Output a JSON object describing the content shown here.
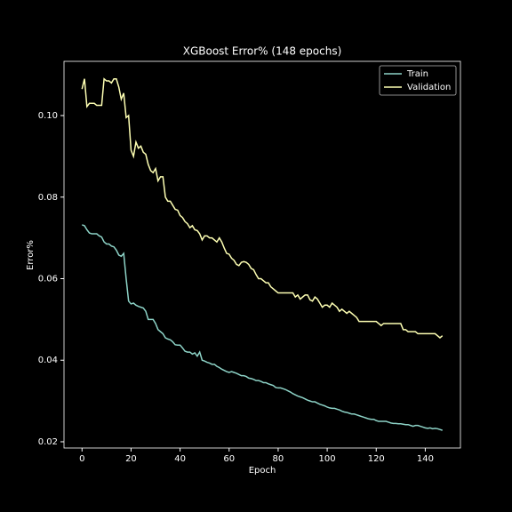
{
  "chart_data": {
    "type": "line",
    "title": "XGBoost Error% (148 epochs)",
    "xlabel": "Epoch",
    "ylabel": "Error%",
    "x": [
      0,
      1,
      2,
      3,
      4,
      5,
      6,
      7,
      8,
      9,
      10,
      11,
      12,
      13,
      14,
      15,
      16,
      17,
      18,
      19,
      20,
      21,
      22,
      23,
      24,
      25,
      26,
      27,
      28,
      29,
      30,
      31,
      32,
      33,
      34,
      35,
      36,
      37,
      38,
      39,
      40,
      41,
      42,
      43,
      44,
      45,
      46,
      47,
      48,
      49,
      50,
      51,
      52,
      53,
      54,
      55,
      56,
      57,
      58,
      59,
      60,
      61,
      62,
      63,
      64,
      65,
      66,
      67,
      68,
      69,
      70,
      71,
      72,
      73,
      74,
      75,
      76,
      77,
      78,
      79,
      80,
      81,
      82,
      83,
      84,
      85,
      86,
      87,
      88,
      89,
      90,
      91,
      92,
      93,
      94,
      95,
      96,
      97,
      98,
      99,
      100,
      101,
      102,
      103,
      104,
      105,
      106,
      107,
      108,
      109,
      110,
      111,
      112,
      113,
      114,
      115,
      116,
      117,
      118,
      119,
      120,
      121,
      122,
      123,
      124,
      125,
      126,
      127,
      128,
      129,
      130,
      131,
      132,
      133,
      134,
      135,
      136,
      137,
      138,
      139,
      140,
      141,
      142,
      143,
      144,
      145,
      146,
      147
    ],
    "series": [
      {
        "name": "Train",
        "color": "#8dd3c7",
        "values": [
          0.0732,
          0.073,
          0.072,
          0.0712,
          0.071,
          0.071,
          0.071,
          0.0705,
          0.0702,
          0.069,
          0.0685,
          0.0685,
          0.068,
          0.0678,
          0.067,
          0.0658,
          0.0655,
          0.0662,
          0.06,
          0.0545,
          0.0538,
          0.054,
          0.0535,
          0.0532,
          0.053,
          0.0528,
          0.052,
          0.05,
          0.05,
          0.05,
          0.049,
          0.0475,
          0.047,
          0.0465,
          0.0455,
          0.0452,
          0.045,
          0.0445,
          0.0438,
          0.0437,
          0.0437,
          0.043,
          0.0422,
          0.042,
          0.042,
          0.0415,
          0.0418,
          0.041,
          0.042,
          0.04,
          0.0398,
          0.0395,
          0.0393,
          0.039,
          0.039,
          0.0385,
          0.0382,
          0.0378,
          0.0375,
          0.0372,
          0.037,
          0.0372,
          0.037,
          0.0368,
          0.0365,
          0.0362,
          0.0362,
          0.036,
          0.0356,
          0.0355,
          0.0353,
          0.035,
          0.035,
          0.0348,
          0.0345,
          0.0345,
          0.0342,
          0.034,
          0.0338,
          0.0333,
          0.0332,
          0.0332,
          0.033,
          0.0328,
          0.0325,
          0.0322,
          0.0318,
          0.0315,
          0.0312,
          0.031,
          0.0308,
          0.0305,
          0.0302,
          0.03,
          0.0298,
          0.0298,
          0.0295,
          0.0292,
          0.029,
          0.0288,
          0.0285,
          0.0283,
          0.0282,
          0.0282,
          0.028,
          0.0278,
          0.0275,
          0.0273,
          0.0272,
          0.027,
          0.0268,
          0.0268,
          0.0266,
          0.0264,
          0.0262,
          0.026,
          0.0258,
          0.0256,
          0.0255,
          0.0255,
          0.0252,
          0.025,
          0.025,
          0.025,
          0.025,
          0.0248,
          0.0246,
          0.0245,
          0.0245,
          0.0244,
          0.0244,
          0.0243,
          0.0242,
          0.0242,
          0.024,
          0.0238,
          0.024,
          0.024,
          0.0238,
          0.0236,
          0.0234,
          0.0233,
          0.0234,
          0.0232,
          0.0233,
          0.0232,
          0.023,
          0.0228
        ]
      },
      {
        "name": "Validation",
        "color": "#feffb3",
        "values": [
          0.1065,
          0.109,
          0.1022,
          0.103,
          0.103,
          0.103,
          0.1025,
          0.1025,
          0.1025,
          0.109,
          0.1085,
          0.1085,
          0.108,
          0.109,
          0.109,
          0.107,
          0.104,
          0.1055,
          0.0995,
          0.1,
          0.0915,
          0.09,
          0.0935,
          0.092,
          0.0925,
          0.091,
          0.0905,
          0.088,
          0.0865,
          0.086,
          0.087,
          0.084,
          0.085,
          0.085,
          0.08,
          0.079,
          0.079,
          0.078,
          0.077,
          0.0768,
          0.0755,
          0.075,
          0.074,
          0.0735,
          0.0725,
          0.073,
          0.072,
          0.0718,
          0.071,
          0.0695,
          0.0705,
          0.0705,
          0.07,
          0.07,
          0.0695,
          0.069,
          0.07,
          0.069,
          0.0675,
          0.0662,
          0.066,
          0.065,
          0.0645,
          0.0635,
          0.0632,
          0.064,
          0.0642,
          0.064,
          0.0635,
          0.0625,
          0.0622,
          0.061,
          0.06,
          0.06,
          0.0595,
          0.059,
          0.059,
          0.058,
          0.0575,
          0.057,
          0.0565,
          0.0565,
          0.0565,
          0.0565,
          0.0565,
          0.0565,
          0.0565,
          0.0555,
          0.056,
          0.055,
          0.0555,
          0.056,
          0.056,
          0.0548,
          0.0545,
          0.0555,
          0.055,
          0.054,
          0.053,
          0.0535,
          0.0535,
          0.053,
          0.054,
          0.0535,
          0.053,
          0.052,
          0.0525,
          0.052,
          0.0515,
          0.052,
          0.0515,
          0.051,
          0.0505,
          0.0495,
          0.0495,
          0.0495,
          0.0495,
          0.0495,
          0.0495,
          0.0495,
          0.0495,
          0.049,
          0.0485,
          0.049,
          0.049,
          0.049,
          0.049,
          0.049,
          0.049,
          0.049,
          0.049,
          0.0475,
          0.0475,
          0.047,
          0.047,
          0.047,
          0.047,
          0.0465,
          0.0465,
          0.0465,
          0.0465,
          0.0465,
          0.0465,
          0.0465,
          0.0465,
          0.046,
          0.0455,
          0.046
        ]
      }
    ],
    "xlim": [
      -7.35,
      154.35
    ],
    "xticks": [
      0,
      20,
      40,
      60,
      80,
      100,
      120,
      140
    ],
    "ylim": [
      0.01847,
      0.1133
    ],
    "yticks": [
      0.02,
      0.04,
      0.06,
      0.08,
      {
        "value": 0.1,
        "label": "0.10"
      }
    ],
    "legend": "upper right"
  }
}
